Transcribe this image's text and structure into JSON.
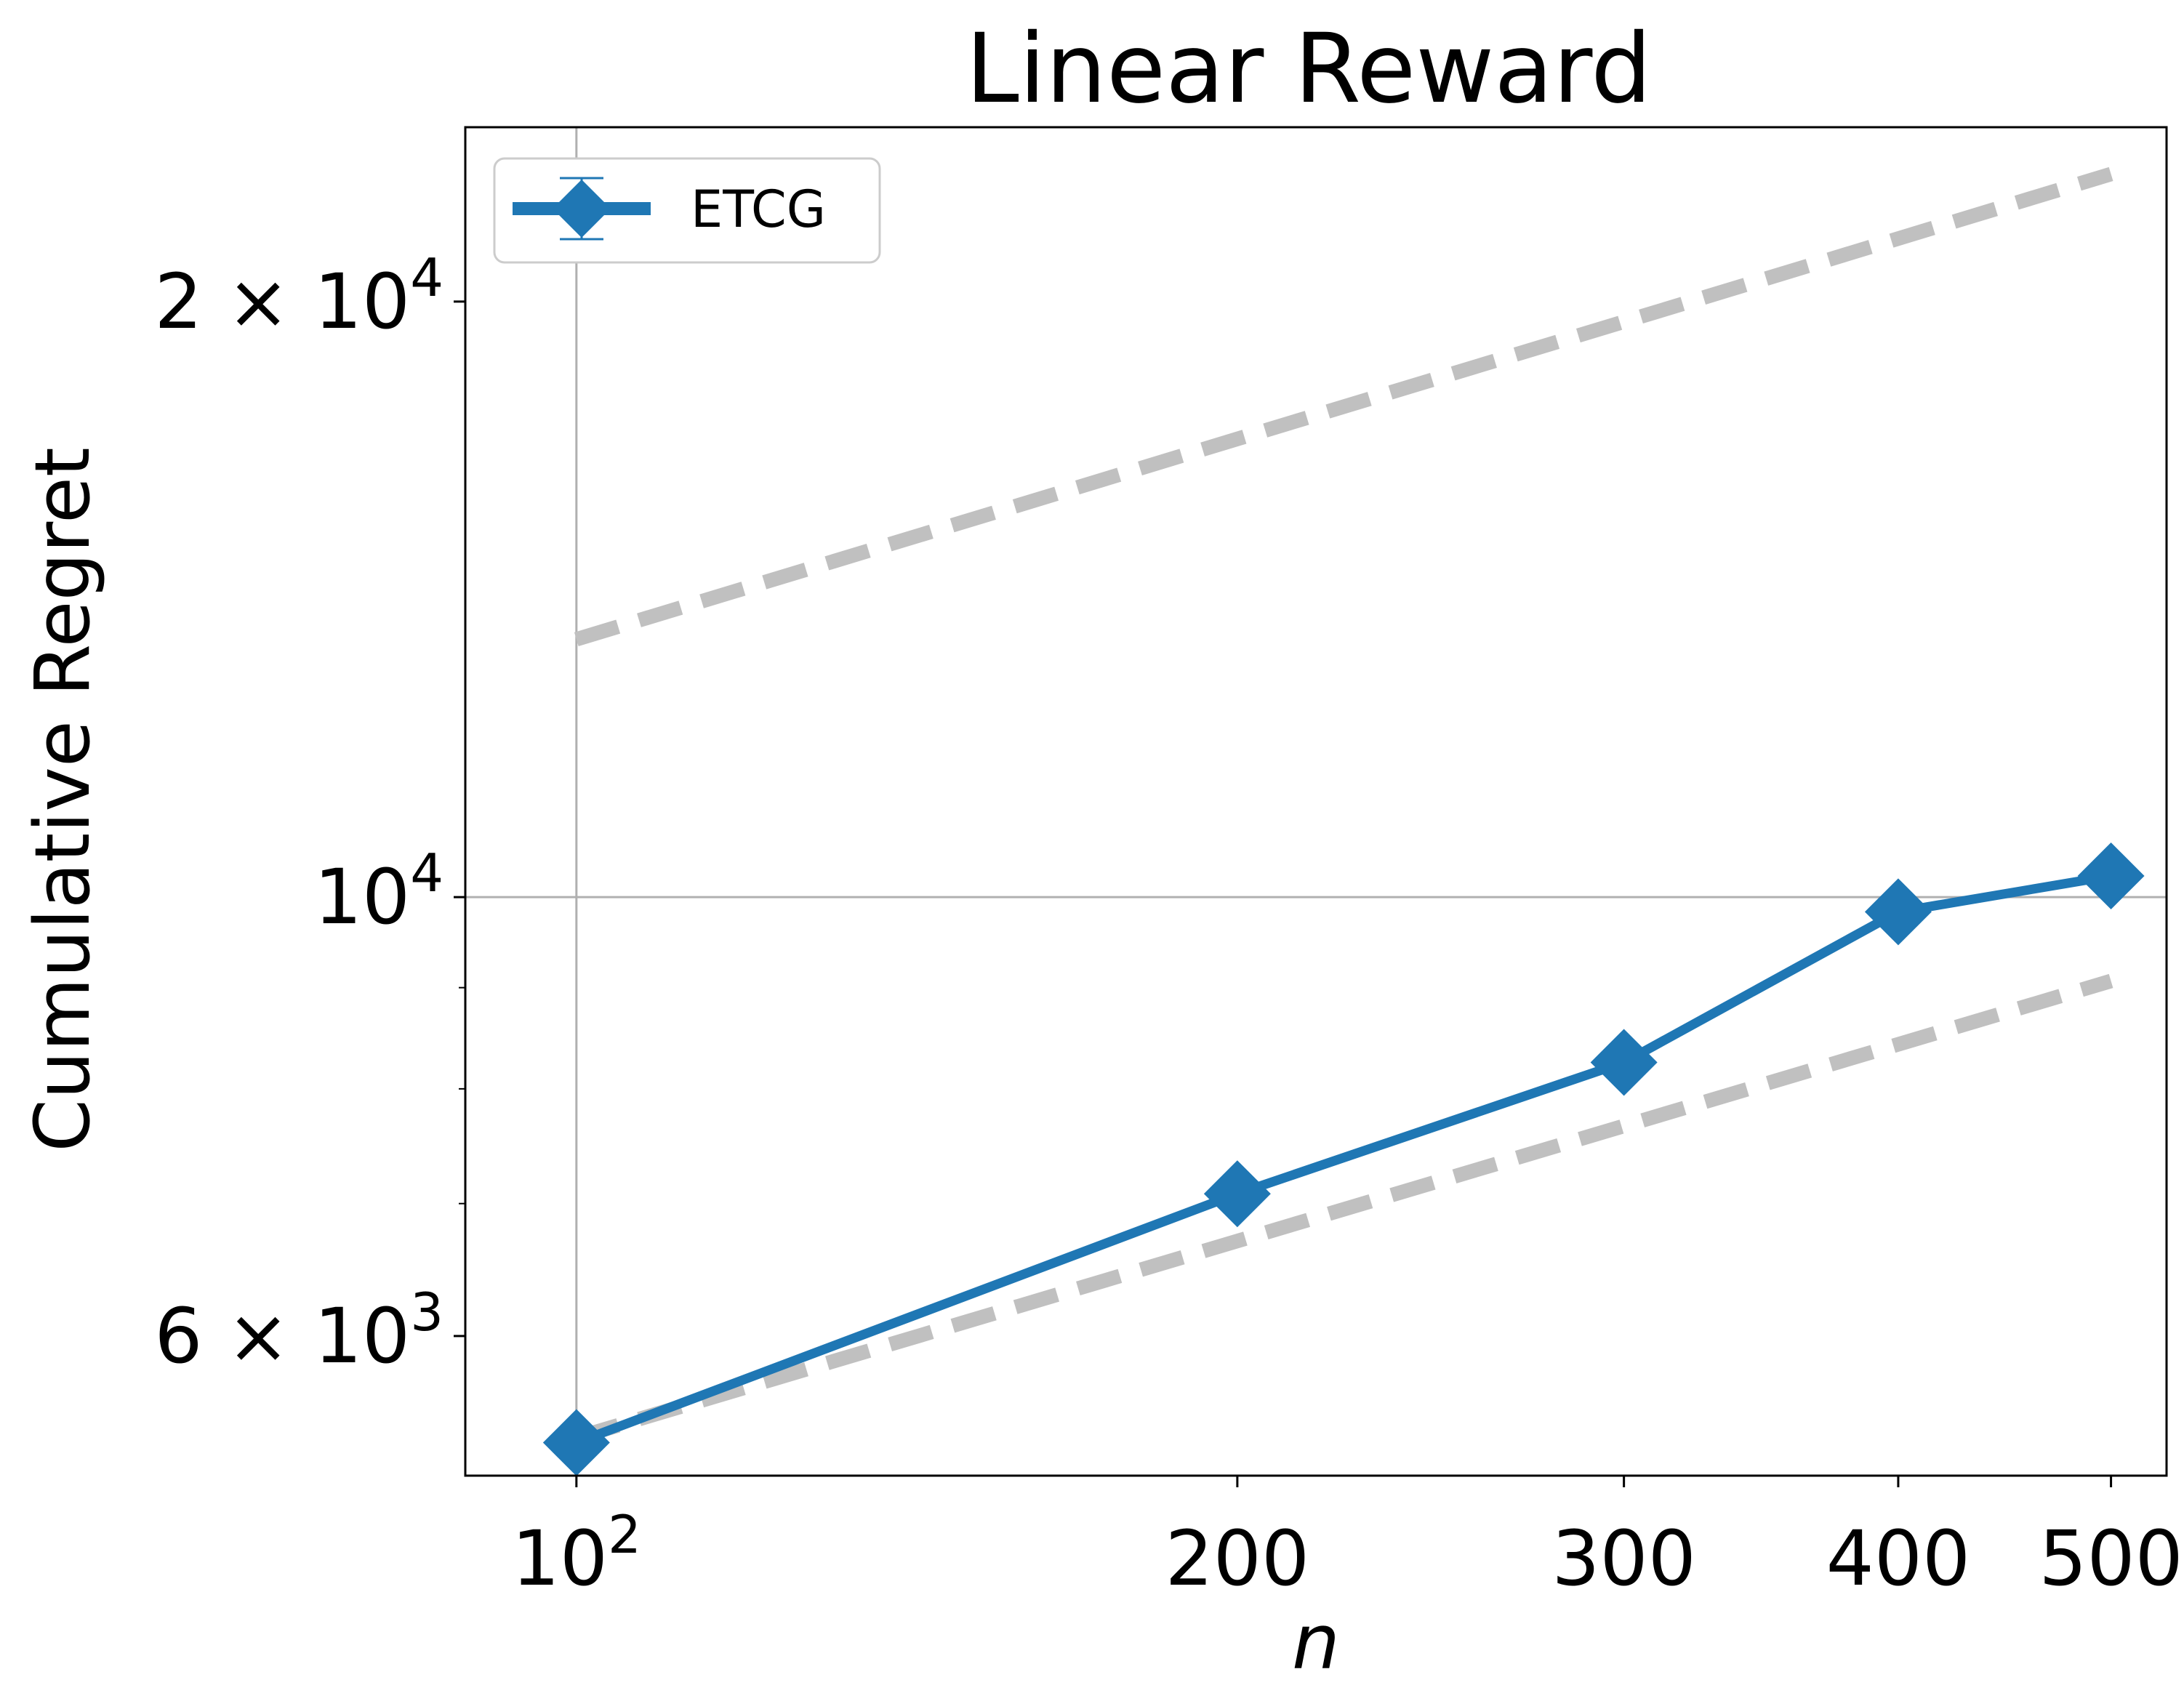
{
  "chart_data": {
    "type": "line",
    "title": "Linear Reward",
    "xlabel": "n",
    "ylabel": "Cumulative Regret",
    "x_scale": "log",
    "y_scale": "log",
    "xlim": [
      89,
      530
    ],
    "ylim": [
      5100,
      24500
    ],
    "grid": true,
    "x_ticks": [
      {
        "value": 100,
        "label": "10",
        "sup": "2"
      },
      {
        "value": 200,
        "label": "200",
        "sup": ""
      },
      {
        "value": 300,
        "label": "300",
        "sup": ""
      },
      {
        "value": 400,
        "label": "400",
        "sup": ""
      },
      {
        "value": 500,
        "label": "500",
        "sup": ""
      }
    ],
    "y_ticks": [
      {
        "value": 20000,
        "label": "2 × 10",
        "sup": "4"
      },
      {
        "value": 10000,
        "label": "10",
        "sup": "4"
      },
      {
        "value": 6000,
        "label": "6 × 10",
        "sup": "3"
      }
    ],
    "y_minor_ticks": [
      7000,
      8000,
      9000
    ],
    "x": [
      100,
      200,
      300,
      400,
      500
    ],
    "series": [
      {
        "name": "ETCG",
        "values": [
          5300,
          7080,
          8250,
          9830,
          10250
        ],
        "color": "#1f77b4",
        "style": "solid",
        "marker": "diamond"
      }
    ],
    "reference_lines": [
      {
        "x": [
          100,
          500
        ],
        "values": [
          13500,
          23200
        ],
        "color": "#c0c0c0",
        "style": "dashed"
      },
      {
        "x": [
          100,
          500
        ],
        "values": [
          5330,
          9070
        ],
        "color": "#c0c0c0",
        "style": "dashed"
      }
    ],
    "legend": {
      "position": "top-left"
    }
  }
}
